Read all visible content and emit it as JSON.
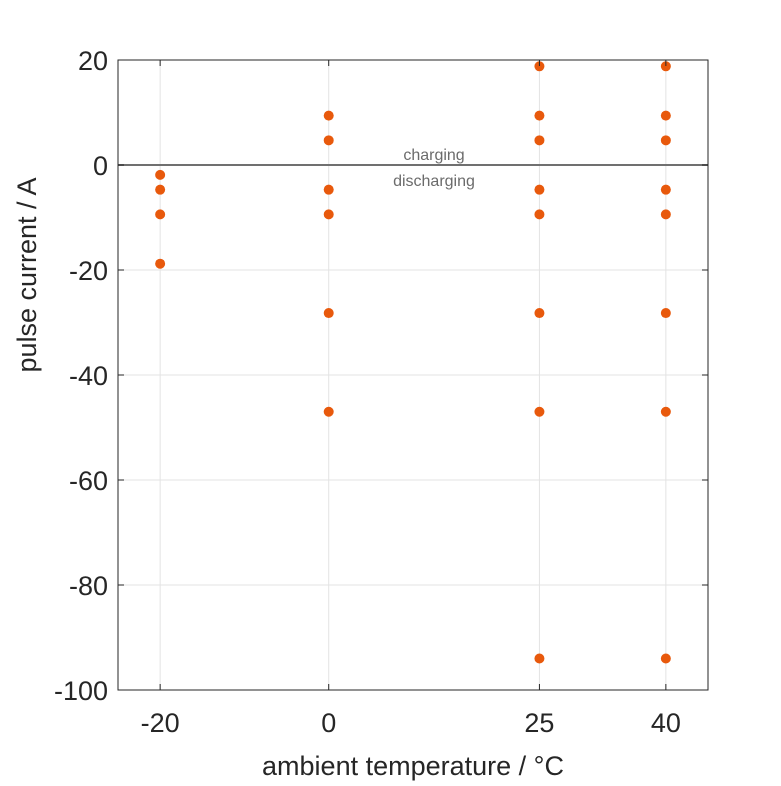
{
  "chart_data": {
    "type": "scatter",
    "title": "",
    "xlabel": "ambient temperature / °C",
    "ylabel": "pulse current / A",
    "xlim": [
      -25,
      45
    ],
    "ylim": [
      -100,
      20
    ],
    "xticks": [
      -20,
      0,
      25,
      40
    ],
    "yticks": [
      -100,
      -80,
      -60,
      -40,
      -20,
      0,
      20
    ],
    "grid": true,
    "marker_color": "#E8590C",
    "zero_line_color": "#707070",
    "annotations": {
      "above_zero": "charging",
      "below_zero": "discharging"
    },
    "points": [
      {
        "x": -20,
        "y": -1.88
      },
      {
        "x": -20,
        "y": -4.7
      },
      {
        "x": -20,
        "y": -9.4
      },
      {
        "x": -20,
        "y": -18.8
      },
      {
        "x": 0,
        "y": 9.4
      },
      {
        "x": 0,
        "y": 4.7
      },
      {
        "x": 0,
        "y": -4.7
      },
      {
        "x": 0,
        "y": -9.4
      },
      {
        "x": 0,
        "y": -28.2
      },
      {
        "x": 0,
        "y": -47
      },
      {
        "x": 25,
        "y": 18.8
      },
      {
        "x": 25,
        "y": 9.4
      },
      {
        "x": 25,
        "y": 4.7
      },
      {
        "x": 25,
        "y": -4.7
      },
      {
        "x": 25,
        "y": -9.4
      },
      {
        "x": 25,
        "y": -28.2
      },
      {
        "x": 25,
        "y": -47
      },
      {
        "x": 25,
        "y": -94
      },
      {
        "x": 40,
        "y": 18.8
      },
      {
        "x": 40,
        "y": 9.4
      },
      {
        "x": 40,
        "y": 4.7
      },
      {
        "x": 40,
        "y": -4.7
      },
      {
        "x": 40,
        "y": -9.4
      },
      {
        "x": 40,
        "y": -28.2
      },
      {
        "x": 40,
        "y": -47
      },
      {
        "x": 40,
        "y": -94
      }
    ]
  }
}
